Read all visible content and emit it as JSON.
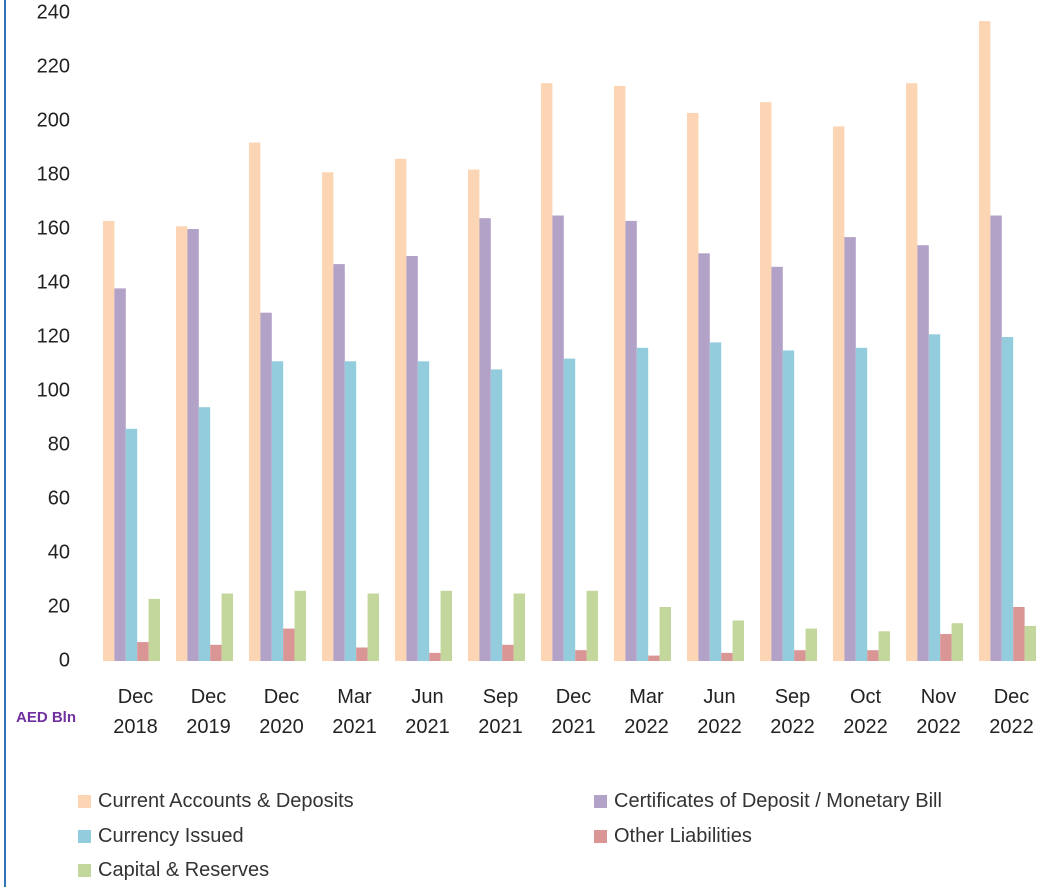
{
  "chart_data": {
    "type": "bar",
    "y_label": "AED Bln",
    "categories": [
      "Dec 2018",
      "Dec 2019",
      "Dec 2020",
      "Mar 2021",
      "Jun 2021",
      "Sep 2021",
      "Dec 2021",
      "Mar 2022",
      "Jun 2022",
      "Sep 2022",
      "Oct 2022",
      "Nov 2022",
      "Dec 2022"
    ],
    "series": [
      {
        "name": "Current Accounts & Deposits",
        "color": "#fcd5b4",
        "values": [
          163,
          161,
          192,
          181,
          186,
          182,
          214,
          213,
          203,
          207,
          198,
          214,
          237
        ]
      },
      {
        "name": "Certificates of Deposit / Monetary Bill",
        "color": "#b3a2c7",
        "values": [
          138,
          160,
          129,
          147,
          150,
          164,
          165,
          163,
          151,
          146,
          157,
          154,
          165
        ]
      },
      {
        "name": "Currency Issued",
        "color": "#93cddd",
        "values": [
          86,
          94,
          111,
          111,
          111,
          108,
          112,
          116,
          118,
          115,
          116,
          121,
          120
        ]
      },
      {
        "name": "Other Liabilities",
        "color": "#d99694",
        "values": [
          7,
          6,
          12,
          5,
          3,
          6,
          4,
          2,
          3,
          4,
          4,
          10,
          20
        ]
      },
      {
        "name": "Capital & Reserves",
        "color": "#c3d69b",
        "values": [
          23,
          25,
          26,
          25,
          26,
          25,
          26,
          20,
          15,
          12,
          11,
          14,
          13
        ]
      }
    ],
    "ylim": [
      0,
      240
    ],
    "yticks": [
      0,
      20,
      40,
      60,
      80,
      100,
      120,
      140,
      160,
      180,
      200,
      220,
      240
    ],
    "grid": false
  }
}
